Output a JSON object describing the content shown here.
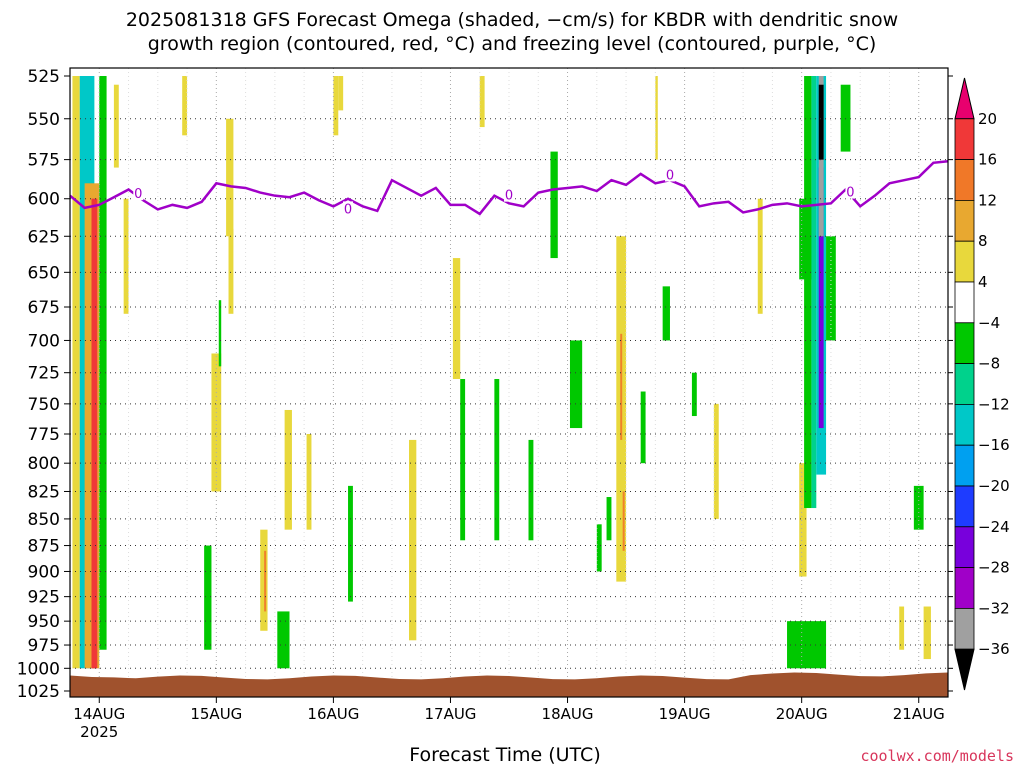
{
  "title": {
    "line1": "2025081318 GFS Forecast Omega (shaded, −cm/s) for KBDR with dendritic snow",
    "line2": "growth region (contoured, red, °C) and freezing level (contoured, purple, °C)"
  },
  "xlabel": "Forecast Time (UTC)",
  "credit": "coolwx.com/models",
  "chart_data": {
    "type": "heatmap",
    "title": "2025081318 GFS Forecast Omega (shaded, −cm/s) for KBDR with dendritic snow growth region (contoured, red, °C) and freezing level (contoured, purple, °C)",
    "xlabel": "Forecast Time (UTC)",
    "ylabel": "",
    "x_start": "2025-08-13T18:00Z",
    "x_end": "2025-08-21T06:00Z",
    "x_ticks": [
      {
        "time": "2025-08-14T00:00Z",
        "label": "14AUG",
        "sublabel": "2025"
      },
      {
        "time": "2025-08-15T00:00Z",
        "label": "15AUG"
      },
      {
        "time": "2025-08-16T00:00Z",
        "label": "16AUG"
      },
      {
        "time": "2025-08-17T00:00Z",
        "label": "17AUG"
      },
      {
        "time": "2025-08-18T00:00Z",
        "label": "18AUG"
      },
      {
        "time": "2025-08-19T00:00Z",
        "label": "19AUG"
      },
      {
        "time": "2025-08-20T00:00Z",
        "label": "20AUG"
      },
      {
        "time": "2025-08-21T00:00Z",
        "label": "21AUG"
      }
    ],
    "y_ticks": [
      525,
      550,
      575,
      600,
      625,
      650,
      675,
      700,
      725,
      750,
      775,
      800,
      825,
      850,
      875,
      900,
      925,
      950,
      975,
      1000,
      1025
    ],
    "ylim": [
      1025,
      525
    ],
    "grid": true,
    "colorbar": {
      "labels": [
        "20",
        "16",
        "12",
        "8",
        "4",
        "−4",
        "−8",
        "−12",
        "−16",
        "−20",
        "−24",
        "−28",
        "−32",
        "−36"
      ],
      "bins": [
        {
          "label": ">20",
          "color": "#e8006e"
        },
        {
          "label": "16 to 20",
          "color": "#f03838"
        },
        {
          "label": "12 to 16",
          "color": "#f07828"
        },
        {
          "label": "8 to 12",
          "color": "#e8a830"
        },
        {
          "label": "4 to 8",
          "color": "#e8d83c"
        },
        {
          "label": "-4 to 4",
          "color": "#ffffff"
        },
        {
          "label": "-8 to -4",
          "color": "#00c800"
        },
        {
          "label": "-12 to -8",
          "color": "#00d28c"
        },
        {
          "label": "-16 to -12",
          "color": "#00c8c8"
        },
        {
          "label": "-20 to -16",
          "color": "#00a0f0"
        },
        {
          "label": "-24 to -20",
          "color": "#1e3cff"
        },
        {
          "label": "-28 to -24",
          "color": "#7800dc"
        },
        {
          "label": "-32 to -28",
          "color": "#a000c8"
        },
        {
          "label": "-36 to -32",
          "color": "#a0a0a0"
        },
        {
          "label": "<-36",
          "color": "#000000"
        }
      ]
    },
    "freezing_level": {
      "name": "0",
      "color": "#a000c8",
      "points": [
        [
          "2025-08-13T18:00Z",
          598
        ],
        [
          "2025-08-13T21:00Z",
          606
        ],
        [
          "2025-08-14T00:00Z",
          604
        ],
        [
          "2025-08-14T03:00Z",
          599
        ],
        [
          "2025-08-14T06:00Z",
          594
        ],
        [
          "2025-08-14T09:00Z",
          601
        ],
        [
          "2025-08-14T12:00Z",
          607
        ],
        [
          "2025-08-14T15:00Z",
          604
        ],
        [
          "2025-08-14T18:00Z",
          606
        ],
        [
          "2025-08-14T21:00Z",
          602
        ],
        [
          "2025-08-15T00:00Z",
          590
        ],
        [
          "2025-08-15T03:00Z",
          592
        ],
        [
          "2025-08-15T06:00Z",
          593
        ],
        [
          "2025-08-15T09:00Z",
          596
        ],
        [
          "2025-08-15T12:00Z",
          598
        ],
        [
          "2025-08-15T15:00Z",
          599
        ],
        [
          "2025-08-15T18:00Z",
          596
        ],
        [
          "2025-08-15T21:00Z",
          601
        ],
        [
          "2025-08-16T00:00Z",
          605
        ],
        [
          "2025-08-16T03:00Z",
          600
        ],
        [
          "2025-08-16T06:00Z",
          605
        ],
        [
          "2025-08-16T09:00Z",
          608
        ],
        [
          "2025-08-16T12:00Z",
          588
        ],
        [
          "2025-08-16T15:00Z",
          593
        ],
        [
          "2025-08-16T18:00Z",
          598
        ],
        [
          "2025-08-16T21:00Z",
          593
        ],
        [
          "2025-08-17T00:00Z",
          604
        ],
        [
          "2025-08-17T03:00Z",
          604
        ],
        [
          "2025-08-17T06:00Z",
          610
        ],
        [
          "2025-08-17T09:00Z",
          598
        ],
        [
          "2025-08-17T12:00Z",
          603
        ],
        [
          "2025-08-17T15:00Z",
          605
        ],
        [
          "2025-08-17T18:00Z",
          596
        ],
        [
          "2025-08-17T21:00Z",
          594
        ],
        [
          "2025-08-18T00:00Z",
          593
        ],
        [
          "2025-08-18T03:00Z",
          592
        ],
        [
          "2025-08-18T06:00Z",
          595
        ],
        [
          "2025-08-18T09:00Z",
          588
        ],
        [
          "2025-08-18T12:00Z",
          591
        ],
        [
          "2025-08-18T15:00Z",
          584
        ],
        [
          "2025-08-18T18:00Z",
          590
        ],
        [
          "2025-08-18T21:00Z",
          588
        ],
        [
          "2025-08-19T00:00Z",
          592
        ],
        [
          "2025-08-19T03:00Z",
          605
        ],
        [
          "2025-08-19T06:00Z",
          603
        ],
        [
          "2025-08-19T09:00Z",
          602
        ],
        [
          "2025-08-19T12:00Z",
          609
        ],
        [
          "2025-08-19T15:00Z",
          607
        ],
        [
          "2025-08-19T18:00Z",
          604
        ],
        [
          "2025-08-19T21:00Z",
          603
        ],
        [
          "2025-08-20T00:00Z",
          605
        ],
        [
          "2025-08-20T03:00Z",
          604
        ],
        [
          "2025-08-20T06:00Z",
          603
        ],
        [
          "2025-08-20T09:00Z",
          594
        ],
        [
          "2025-08-20T12:00Z",
          605
        ],
        [
          "2025-08-20T15:00Z",
          598
        ],
        [
          "2025-08-20T18:00Z",
          590
        ],
        [
          "2025-08-20T21:00Z",
          588
        ],
        [
          "2025-08-21T00:00Z",
          586
        ],
        [
          "2025-08-21T03:00Z",
          577
        ],
        [
          "2025-08-21T06:00Z",
          576
        ]
      ],
      "labels": [
        {
          "time": "2025-08-14T08:00Z",
          "p": 597,
          "text": "0"
        },
        {
          "time": "2025-08-16T03:00Z",
          "p": 607,
          "text": "0"
        },
        {
          "time": "2025-08-17T12:00Z",
          "p": 598,
          "text": "0"
        },
        {
          "time": "2025-08-18T21:00Z",
          "p": 585,
          "text": "0"
        },
        {
          "time": "2025-08-20T10:00Z",
          "p": 596,
          "text": "0"
        }
      ]
    },
    "ground": {
      "color": "#a0522d",
      "surface_p": 1010
    },
    "omega_regions": [
      {
        "t0": "2025-08-13T18:30Z",
        "t1": "2025-08-13T20:00Z",
        "p_top": 525,
        "p_bottom": 1000,
        "color": "#e8d83c"
      },
      {
        "t0": "2025-08-13T20:00Z",
        "t1": "2025-08-13T23:00Z",
        "p_top": 525,
        "p_bottom": 1000,
        "color": "#00c8c8"
      },
      {
        "t0": "2025-08-13T21:00Z",
        "t1": "2025-08-14T00:00Z",
        "p_top": 590,
        "p_bottom": 1000,
        "color": "#e8a830"
      },
      {
        "t0": "2025-08-13T22:30Z",
        "t1": "2025-08-13T23:30Z",
        "p_top": 600,
        "p_bottom": 1000,
        "color": "#f03838"
      },
      {
        "t0": "2025-08-14T00:00Z",
        "t1": "2025-08-14T01:30Z",
        "p_top": 525,
        "p_bottom": 980,
        "color": "#00c800"
      },
      {
        "t0": "2025-08-14T03:00Z",
        "t1": "2025-08-14T04:00Z",
        "p_top": 530,
        "p_bottom": 580,
        "color": "#e8d83c"
      },
      {
        "t0": "2025-08-14T05:00Z",
        "t1": "2025-08-14T06:00Z",
        "p_top": 600,
        "p_bottom": 680,
        "color": "#e8d83c"
      },
      {
        "t0": "2025-08-14T17:00Z",
        "t1": "2025-08-14T18:00Z",
        "p_top": 525,
        "p_bottom": 560,
        "color": "#e8d83c"
      },
      {
        "t0": "2025-08-14T23:00Z",
        "t1": "2025-08-15T01:00Z",
        "p_top": 710,
        "p_bottom": 825,
        "color": "#e8d83c"
      },
      {
        "t0": "2025-08-14T21:30Z",
        "t1": "2025-08-14T23:00Z",
        "p_top": 875,
        "p_bottom": 980,
        "color": "#00c800"
      },
      {
        "t0": "2025-08-15T00:30Z",
        "t1": "2025-08-15T01:00Z",
        "p_top": 670,
        "p_bottom": 720,
        "color": "#00c800"
      },
      {
        "t0": "2025-08-15T02:00Z",
        "t1": "2025-08-15T03:30Z",
        "p_top": 550,
        "p_bottom": 625,
        "color": "#e8d83c"
      },
      {
        "t0": "2025-08-15T02:30Z",
        "t1": "2025-08-15T03:30Z",
        "p_top": 620,
        "p_bottom": 680,
        "color": "#e8d83c"
      },
      {
        "t0": "2025-08-15T09:00Z",
        "t1": "2025-08-15T10:30Z",
        "p_top": 860,
        "p_bottom": 960,
        "color": "#e8d83c"
      },
      {
        "t0": "2025-08-15T12:30Z",
        "t1": "2025-08-15T15:00Z",
        "p_top": 940,
        "p_bottom": 1000,
        "color": "#00c800"
      },
      {
        "t0": "2025-08-15T14:00Z",
        "t1": "2025-08-15T15:30Z",
        "p_top": 755,
        "p_bottom": 860,
        "color": "#e8d83c"
      },
      {
        "t0": "2025-08-15T18:30Z",
        "t1": "2025-08-15T19:30Z",
        "p_top": 775,
        "p_bottom": 860,
        "color": "#e8d83c"
      },
      {
        "t0": "2025-08-16T00:00Z",
        "t1": "2025-08-16T01:00Z",
        "p_top": 525,
        "p_bottom": 560,
        "color": "#e8d83c"
      },
      {
        "t0": "2025-08-16T01:00Z",
        "t1": "2025-08-16T02:00Z",
        "p_top": 525,
        "p_bottom": 545,
        "color": "#e8d83c"
      },
      {
        "t0": "2025-08-16T03:00Z",
        "t1": "2025-08-16T04:00Z",
        "p_top": 820,
        "p_bottom": 930,
        "color": "#00c800"
      },
      {
        "t0": "2025-08-16T15:30Z",
        "t1": "2025-08-16T17:00Z",
        "p_top": 780,
        "p_bottom": 970,
        "color": "#e8d83c"
      },
      {
        "t0": "2025-08-17T00:30Z",
        "t1": "2025-08-17T02:00Z",
        "p_top": 640,
        "p_bottom": 730,
        "color": "#e8d83c"
      },
      {
        "t0": "2025-08-17T02:00Z",
        "t1": "2025-08-17T03:00Z",
        "p_top": 730,
        "p_bottom": 870,
        "color": "#00c800"
      },
      {
        "t0": "2025-08-17T06:00Z",
        "t1": "2025-08-17T07:00Z",
        "p_top": 525,
        "p_bottom": 555,
        "color": "#e8d83c"
      },
      {
        "t0": "2025-08-17T09:00Z",
        "t1": "2025-08-17T10:00Z",
        "p_top": 730,
        "p_bottom": 870,
        "color": "#00c800"
      },
      {
        "t0": "2025-08-17T16:00Z",
        "t1": "2025-08-17T17:00Z",
        "p_top": 780,
        "p_bottom": 870,
        "color": "#00c800"
      },
      {
        "t0": "2025-08-17T20:30Z",
        "t1": "2025-08-17T22:00Z",
        "p_top": 570,
        "p_bottom": 640,
        "color": "#00c800"
      },
      {
        "t0": "2025-08-18T00:30Z",
        "t1": "2025-08-18T03:00Z",
        "p_top": 700,
        "p_bottom": 770,
        "color": "#00c800"
      },
      {
        "t0": "2025-08-18T06:00Z",
        "t1": "2025-08-18T07:00Z",
        "p_top": 855,
        "p_bottom": 900,
        "color": "#00c800"
      },
      {
        "t0": "2025-08-18T08:00Z",
        "t1": "2025-08-18T09:00Z",
        "p_top": 830,
        "p_bottom": 870,
        "color": "#00c800"
      },
      {
        "t0": "2025-08-18T10:00Z",
        "t1": "2025-08-18T12:00Z",
        "p_top": 625,
        "p_bottom": 910,
        "color": "#e8d83c"
      },
      {
        "t0": "2025-08-18T15:00Z",
        "t1": "2025-08-18T16:00Z",
        "p_top": 740,
        "p_bottom": 800,
        "color": "#00c800"
      },
      {
        "t0": "2025-08-18T18:00Z",
        "t1": "2025-08-18T18:30Z",
        "p_top": 525,
        "p_bottom": 575,
        "color": "#e8d83c"
      },
      {
        "t0": "2025-08-18T19:30Z",
        "t1": "2025-08-18T21:00Z",
        "p_top": 660,
        "p_bottom": 700,
        "color": "#00c800"
      },
      {
        "t0": "2025-08-18T21:30Z",
        "t1": "2025-08-18T22:30Z",
        "p_top": 500,
        "p_bottom": 1000,
        "color": "#ffffff"
      },
      {
        "t0": "2025-08-19T01:30Z",
        "t1": "2025-08-19T02:30Z",
        "p_top": 725,
        "p_bottom": 760,
        "color": "#00c800"
      },
      {
        "t0": "2025-08-19T06:00Z",
        "t1": "2025-08-19T07:00Z",
        "p_top": 750,
        "p_bottom": 850,
        "color": "#e8d83c"
      },
      {
        "t0": "2025-08-19T15:00Z",
        "t1": "2025-08-19T16:00Z",
        "p_top": 600,
        "p_bottom": 680,
        "color": "#e8d83c"
      },
      {
        "t0": "2025-08-19T23:30Z",
        "t1": "2025-08-20T02:00Z",
        "p_top": 600,
        "p_bottom": 655,
        "color": "#00c800"
      },
      {
        "t0": "2025-08-19T23:30Z",
        "t1": "2025-08-20T01:00Z",
        "p_top": 800,
        "p_bottom": 905,
        "color": "#e8d83c"
      },
      {
        "t0": "2025-08-20T00:30Z",
        "t1": "2025-08-20T02:00Z",
        "p_top": 525,
        "p_bottom": 840,
        "color": "#00c800"
      },
      {
        "t0": "2025-08-20T02:00Z",
        "t1": "2025-08-20T03:00Z",
        "p_top": 525,
        "p_bottom": 840,
        "color": "#00d28c"
      },
      {
        "t0": "2025-08-20T03:00Z",
        "t1": "2025-08-20T05:00Z",
        "p_top": 525,
        "p_bottom": 810,
        "color": "#00c8c8"
      },
      {
        "t0": "2025-08-20T03:30Z",
        "t1": "2025-08-20T04:30Z",
        "p_top": 580,
        "p_bottom": 770,
        "color": "#7800dc"
      },
      {
        "t0": "2025-08-20T03:30Z",
        "t1": "2025-08-20T04:30Z",
        "p_top": 525,
        "p_bottom": 625,
        "color": "#a0a0a0"
      },
      {
        "t0": "2025-08-20T03:30Z",
        "t1": "2025-08-20T04:30Z",
        "p_top": 530,
        "p_bottom": 575,
        "color": "#000000"
      },
      {
        "t0": "2025-08-20T05:00Z",
        "t1": "2025-08-20T07:00Z",
        "p_top": 625,
        "p_bottom": 700,
        "color": "#00c800"
      },
      {
        "t0": "2025-08-20T08:00Z",
        "t1": "2025-08-20T10:00Z",
        "p_top": 530,
        "p_bottom": 570,
        "color": "#00c800"
      },
      {
        "t0": "2025-08-19T21:00Z",
        "t1": "2025-08-20T05:00Z",
        "p_top": 950,
        "p_bottom": 1000,
        "color": "#00c800"
      },
      {
        "t0": "2025-08-20T23:00Z",
        "t1": "2025-08-21T01:00Z",
        "p_top": 820,
        "p_bottom": 860,
        "color": "#00c800"
      },
      {
        "t0": "2025-08-20T20:00Z",
        "t1": "2025-08-20T21:00Z",
        "p_top": 935,
        "p_bottom": 980,
        "color": "#e8d83c"
      },
      {
        "t0": "2025-08-21T01:00Z",
        "t1": "2025-08-21T02:30Z",
        "p_top": 935,
        "p_bottom": 990,
        "color": "#e8d83c"
      }
    ],
    "dendritic_zones": [
      {
        "t0": "2025-08-13T21:30Z",
        "t1": "2025-08-14T00:30Z",
        "p_top": 600,
        "p_bottom": 1000,
        "color": "#f03838"
      },
      {
        "t0": "2025-08-15T09:30Z",
        "t1": "2025-08-15T10:30Z",
        "p_top": 880,
        "p_bottom": 940,
        "color": "#f07828"
      },
      {
        "t0": "2025-08-18T10:30Z",
        "t1": "2025-08-18T11:30Z",
        "p_top": 695,
        "p_bottom": 780,
        "color": "#f07828"
      },
      {
        "t0": "2025-08-18T11:00Z",
        "t1": "2025-08-18T12:00Z",
        "p_top": 825,
        "p_bottom": 880,
        "color": "#f07828"
      }
    ]
  }
}
